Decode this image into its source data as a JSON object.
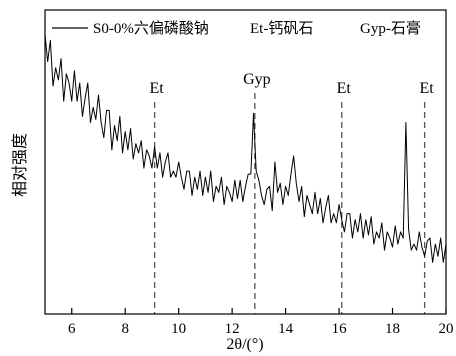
{
  "chart_data": {
    "type": "line",
    "xlabel": "2θ/(°)",
    "ylabel": "相对强度",
    "xlim": [
      5,
      20
    ],
    "ylim": [
      0,
      100
    ],
    "xticks": [
      6,
      8,
      10,
      12,
      14,
      16,
      18,
      20
    ],
    "yticks": [],
    "grid": false,
    "legend_position": "top-left",
    "marker_color": "#555555",
    "series": [
      {
        "name": "S0-0%六偏磷酸钠",
        "color": "#000000",
        "x": [
          5,
          5.1,
          5.2,
          5.3,
          5.4,
          5.5,
          5.6,
          5.7,
          5.8,
          5.9,
          6,
          6.1,
          6.2,
          6.3,
          6.4,
          6.5,
          6.6,
          6.7,
          6.8,
          6.9,
          7,
          7.1,
          7.2,
          7.3,
          7.4,
          7.5,
          7.6,
          7.7,
          7.8,
          7.9,
          8,
          8.1,
          8.2,
          8.3,
          8.4,
          8.5,
          8.6,
          8.7,
          8.8,
          8.9,
          9,
          9.1,
          9.2,
          9.3,
          9.4,
          9.5,
          9.6,
          9.7,
          9.8,
          9.9,
          10,
          10.1,
          10.2,
          10.3,
          10.4,
          10.5,
          10.6,
          10.7,
          10.8,
          10.9,
          11,
          11.1,
          11.2,
          11.3,
          11.4,
          11.5,
          11.6,
          11.7,
          11.8,
          11.9,
          12,
          12.1,
          12.2,
          12.3,
          12.4,
          12.5,
          12.6,
          12.7,
          12.8,
          12.9,
          13,
          13.1,
          13.2,
          13.3,
          13.4,
          13.5,
          13.6,
          13.7,
          13.8,
          13.9,
          14,
          14.1,
          14.2,
          14.3,
          14.4,
          14.5,
          14.6,
          14.7,
          14.8,
          14.9,
          15,
          15.1,
          15.2,
          15.3,
          15.4,
          15.5,
          15.6,
          15.7,
          15.8,
          15.9,
          16,
          16.1,
          16.2,
          16.3,
          16.4,
          16.5,
          16.6,
          16.7,
          16.8,
          16.9,
          17,
          17.1,
          17.2,
          17.3,
          17.4,
          17.5,
          17.6,
          17.7,
          17.8,
          17.9,
          18,
          18.1,
          18.2,
          18.3,
          18.4,
          18.5,
          18.6,
          18.7,
          18.8,
          18.9,
          19,
          19.1,
          19.2,
          19.3,
          19.4,
          19.5,
          19.6,
          19.7,
          19.8,
          19.9,
          20
        ],
        "values": [
          92,
          83,
          90,
          75,
          81,
          77,
          84,
          70,
          79,
          76,
          70,
          80,
          70,
          76,
          65,
          71,
          76,
          63,
          68,
          64,
          72,
          63,
          58,
          67,
          67,
          54,
          62,
          57,
          65,
          53,
          60,
          54,
          61,
          51,
          56,
          53,
          57,
          48,
          54,
          52,
          48,
          55,
          48,
          53,
          45,
          50,
          53,
          45,
          47,
          45,
          50,
          45,
          41,
          47,
          47,
          39,
          45,
          41,
          47,
          39,
          45,
          40,
          47,
          37,
          42,
          40,
          45,
          36,
          42,
          40,
          37,
          44,
          38,
          44,
          37,
          42,
          46,
          46,
          66,
          47,
          44,
          39,
          36,
          41,
          42,
          34,
          50,
          40,
          43,
          36,
          42,
          39,
          46,
          52,
          43,
          37,
          42,
          32,
          39,
          36,
          33,
          40,
          33,
          38,
          30,
          35,
          39,
          30,
          33,
          30,
          36,
          31,
          27,
          33,
          33,
          25,
          31,
          27,
          33,
          25,
          31,
          26,
          32,
          23,
          27,
          25,
          30,
          21,
          27,
          25,
          22,
          29,
          23,
          27,
          25,
          63,
          28,
          21,
          23,
          21,
          27,
          22,
          19,
          24,
          25,
          17,
          23,
          19,
          25,
          17,
          23
        ]
      }
    ],
    "annotation_key": [
      "Et-钙矾石",
      "Gyp-石膏"
    ],
    "peak_markers": [
      {
        "label": "Et",
        "x": 9.1
      },
      {
        "label": "Gyp",
        "x": 12.85
      },
      {
        "label": "Et",
        "x": 16.1
      },
      {
        "label": "Et",
        "x": 19.2
      }
    ]
  }
}
